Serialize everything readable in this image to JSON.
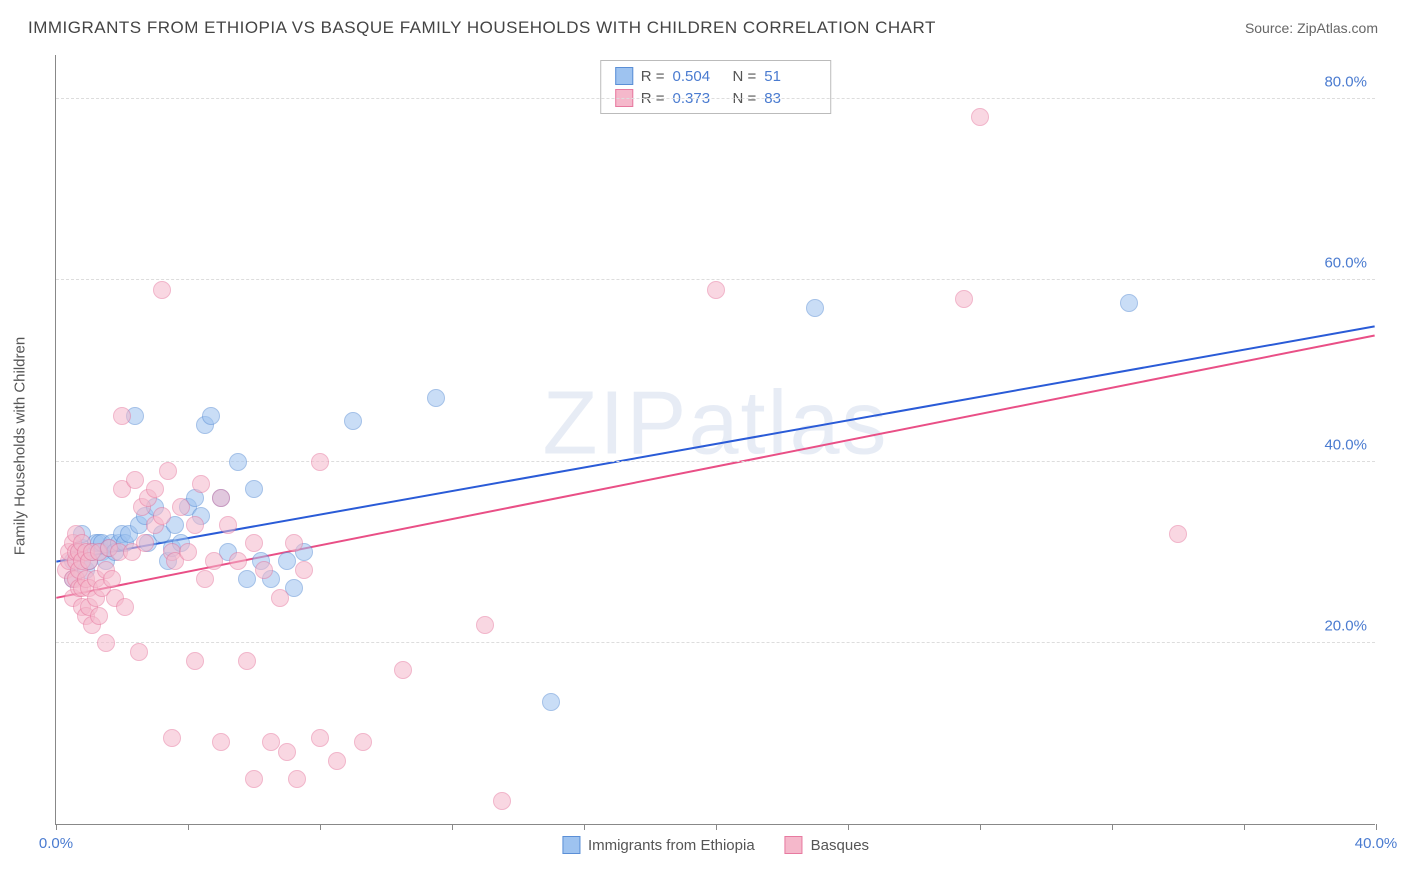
{
  "title": "IMMIGRANTS FROM ETHIOPIA VS BASQUE FAMILY HOUSEHOLDS WITH CHILDREN CORRELATION CHART",
  "source": "Source: ZipAtlas.com",
  "watermark": "ZIPatlas",
  "ylabel": "Family Households with Children",
  "chart": {
    "type": "scatter",
    "xlim": [
      0,
      40
    ],
    "ylim": [
      0,
      85
    ],
    "xticks": [
      0,
      20,
      40
    ],
    "xtick_labels": [
      "0.0%",
      "",
      "40.0%"
    ],
    "yticks": [
      20,
      40,
      60,
      80
    ],
    "ytick_labels": [
      "20.0%",
      "40.0%",
      "60.0%",
      "80.0%"
    ],
    "xtick_marks": [
      0,
      4,
      8,
      12,
      16,
      20,
      24,
      28,
      32,
      36,
      40
    ],
    "background_color": "#ffffff",
    "grid_color": "#dddddd",
    "axis_color": "#888888",
    "tick_label_color": "#4a7bd0",
    "marker_radius": 9,
    "marker_opacity": 0.55,
    "series": [
      {
        "name": "Immigrants from Ethiopia",
        "color_fill": "#9ec3f0",
        "color_stroke": "#5b8fd6",
        "R": "0.504",
        "N": "51",
        "trend": {
          "x1": 0,
          "y1": 29,
          "x2": 40,
          "y2": 55,
          "color": "#2a5bd7",
          "width": 2
        },
        "points": [
          [
            0.5,
            27
          ],
          [
            0.5,
            29
          ],
          [
            0.7,
            30
          ],
          [
            0.8,
            30.5
          ],
          [
            0.8,
            32
          ],
          [
            0.9,
            28
          ],
          [
            1.0,
            29
          ],
          [
            1.1,
            30
          ],
          [
            1.2,
            31
          ],
          [
            1.3,
            31
          ],
          [
            1.4,
            30
          ],
          [
            1.4,
            31
          ],
          [
            1.5,
            29
          ],
          [
            1.6,
            30.5
          ],
          [
            1.7,
            31
          ],
          [
            1.8,
            30
          ],
          [
            1.9,
            31
          ],
          [
            2.0,
            32
          ],
          [
            2.1,
            31
          ],
          [
            2.2,
            32
          ],
          [
            2.4,
            45
          ],
          [
            2.5,
            33
          ],
          [
            2.7,
            34
          ],
          [
            2.8,
            31
          ],
          [
            3.0,
            35
          ],
          [
            3.2,
            32
          ],
          [
            3.4,
            29
          ],
          [
            3.5,
            30.5
          ],
          [
            3.6,
            33
          ],
          [
            3.8,
            31
          ],
          [
            4.0,
            35
          ],
          [
            4.2,
            36
          ],
          [
            4.4,
            34
          ],
          [
            4.5,
            44
          ],
          [
            4.7,
            45
          ],
          [
            5.0,
            36
          ],
          [
            5.2,
            30
          ],
          [
            5.5,
            40
          ],
          [
            5.8,
            27
          ],
          [
            6.0,
            37
          ],
          [
            6.2,
            29
          ],
          [
            6.5,
            27
          ],
          [
            7.0,
            29
          ],
          [
            7.2,
            26
          ],
          [
            7.5,
            30
          ],
          [
            9.0,
            44.5
          ],
          [
            11.5,
            47
          ],
          [
            15.0,
            13.5
          ],
          [
            23.0,
            57
          ],
          [
            32.5,
            57.5
          ]
        ]
      },
      {
        "name": "Basques",
        "color_fill": "#f5b8cb",
        "color_stroke": "#e77aa0",
        "R": "0.373",
        "N": "83",
        "trend": {
          "x1": 0,
          "y1": 25,
          "x2": 40,
          "y2": 54,
          "color": "#e94f86",
          "width": 2
        },
        "points": [
          [
            0.3,
            28
          ],
          [
            0.4,
            29
          ],
          [
            0.4,
            30
          ],
          [
            0.5,
            27
          ],
          [
            0.5,
            31
          ],
          [
            0.5,
            25
          ],
          [
            0.6,
            27
          ],
          [
            0.6,
            29
          ],
          [
            0.6,
            30
          ],
          [
            0.6,
            32
          ],
          [
            0.7,
            26
          ],
          [
            0.7,
            28
          ],
          [
            0.7,
            30
          ],
          [
            0.8,
            24
          ],
          [
            0.8,
            26
          ],
          [
            0.8,
            29
          ],
          [
            0.8,
            31
          ],
          [
            0.9,
            23
          ],
          [
            0.9,
            27
          ],
          [
            0.9,
            30
          ],
          [
            1.0,
            24
          ],
          [
            1.0,
            26
          ],
          [
            1.0,
            29
          ],
          [
            1.1,
            22
          ],
          [
            1.1,
            30
          ],
          [
            1.2,
            25
          ],
          [
            1.2,
            27
          ],
          [
            1.3,
            23
          ],
          [
            1.3,
            30
          ],
          [
            1.4,
            26
          ],
          [
            1.5,
            28
          ],
          [
            1.6,
            30.5
          ],
          [
            1.7,
            27
          ],
          [
            1.8,
            25
          ],
          [
            1.9,
            30
          ],
          [
            2.0,
            37
          ],
          [
            2.1,
            24
          ],
          [
            2.3,
            30
          ],
          [
            2.4,
            38
          ],
          [
            2.6,
            35
          ],
          [
            2.7,
            31
          ],
          [
            2.8,
            36
          ],
          [
            3.0,
            33
          ],
          [
            3.0,
            37
          ],
          [
            3.2,
            34
          ],
          [
            3.4,
            39
          ],
          [
            3.5,
            30
          ],
          [
            3.6,
            29
          ],
          [
            3.8,
            35
          ],
          [
            4.0,
            30
          ],
          [
            4.2,
            33
          ],
          [
            4.4,
            37.5
          ],
          [
            4.5,
            27
          ],
          [
            4.8,
            29
          ],
          [
            5.0,
            36
          ],
          [
            5.2,
            33
          ],
          [
            5.5,
            29
          ],
          [
            6.0,
            31
          ],
          [
            6.3,
            28
          ],
          [
            6.8,
            25
          ],
          [
            7.2,
            31
          ],
          [
            7.5,
            28
          ],
          [
            8.0,
            40
          ],
          [
            2.0,
            45
          ],
          [
            3.2,
            59
          ],
          [
            1.5,
            20
          ],
          [
            2.5,
            19
          ],
          [
            3.5,
            9.5
          ],
          [
            4.2,
            18
          ],
          [
            5.0,
            9
          ],
          [
            5.8,
            18
          ],
          [
            6.0,
            5
          ],
          [
            6.5,
            9
          ],
          [
            7.0,
            8
          ],
          [
            7.3,
            5
          ],
          [
            8.0,
            9.5
          ],
          [
            8.5,
            7
          ],
          [
            9.3,
            9
          ],
          [
            10.5,
            17
          ],
          [
            13.0,
            22
          ],
          [
            13.5,
            2.5
          ],
          [
            20.0,
            59
          ],
          [
            27.5,
            58
          ],
          [
            28.0,
            78
          ],
          [
            34.0,
            32
          ]
        ]
      }
    ]
  },
  "legend_bottom": [
    {
      "label": "Immigrants from Ethiopia",
      "fill": "#9ec3f0",
      "stroke": "#5b8fd6"
    },
    {
      "label": "Basques",
      "fill": "#f5b8cb",
      "stroke": "#e77aa0"
    }
  ]
}
